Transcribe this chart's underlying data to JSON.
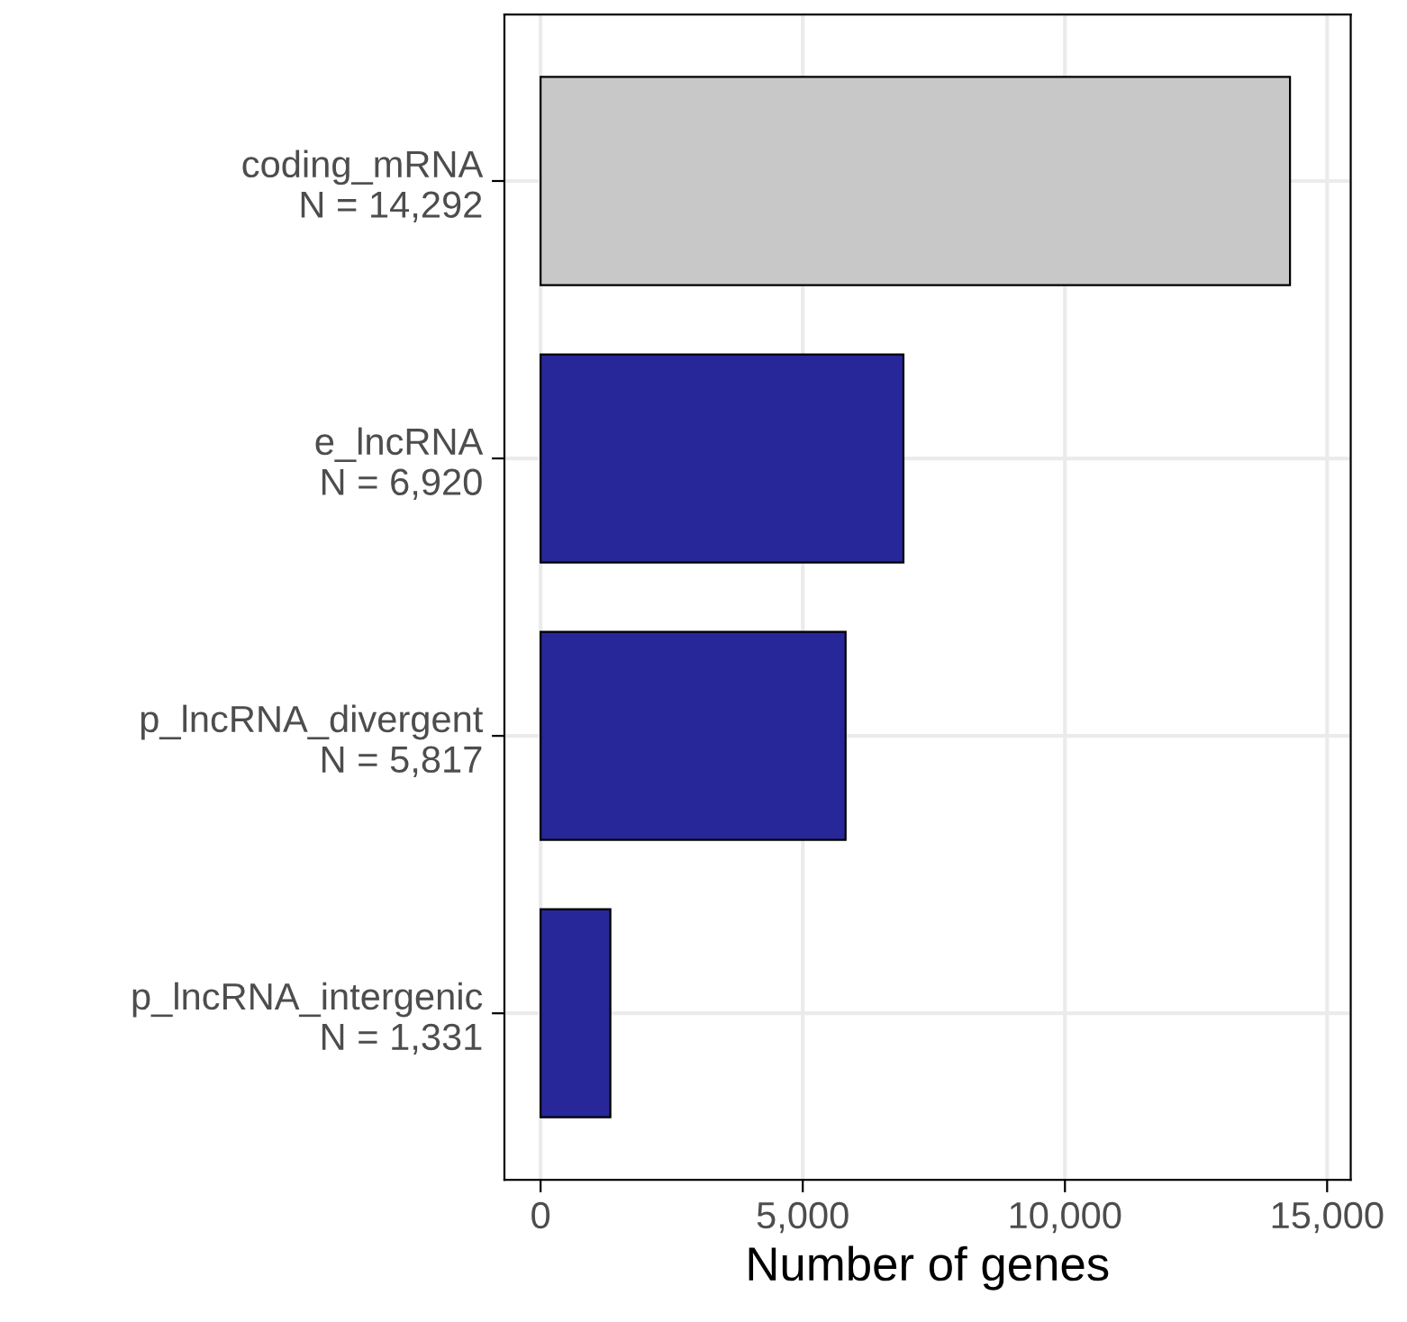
{
  "chart_data": {
    "type": "bar",
    "orientation": "horizontal",
    "xlabel": "Number of genes",
    "categories": [
      "coding_mRNA\nN = 14,292",
      "e_lncRNA\nN = 6,920",
      "p_lncRNA_divergent\nN = 5,817",
      "p_lncRNA_intergenic\nN = 1,331"
    ],
    "values": [
      14292,
      6920,
      5817,
      1331
    ],
    "colors": [
      "#c8c8c8",
      "#27279a",
      "#27279a",
      "#27279a"
    ],
    "xlim": [
      -690,
      15450
    ],
    "xticks": [
      {
        "value": 0,
        "label": "0"
      },
      {
        "value": 5000,
        "label": "5,000"
      },
      {
        "value": 10000,
        "label": "10,000"
      },
      {
        "value": 15000,
        "label": "15,000"
      }
    ],
    "grid": true
  }
}
